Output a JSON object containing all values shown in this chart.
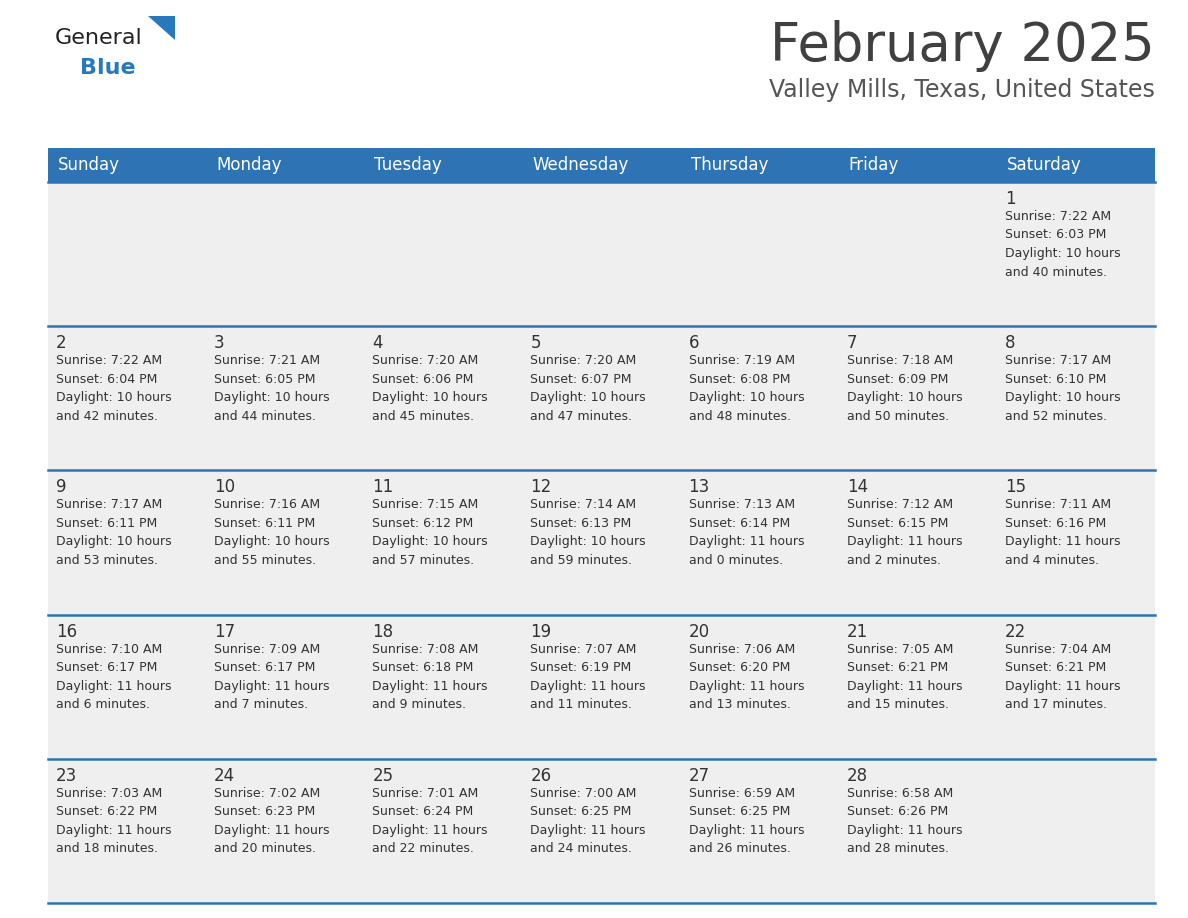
{
  "title": "February 2025",
  "subtitle": "Valley Mills, Texas, United States",
  "days_of_week": [
    "Sunday",
    "Monday",
    "Tuesday",
    "Wednesday",
    "Thursday",
    "Friday",
    "Saturday"
  ],
  "header_bg": "#2E74B5",
  "header_text": "#FFFFFF",
  "cell_bg": "#EFEFEF",
  "cell_text": "#333333",
  "border_color": "#2E74B5",
  "title_color": "#404040",
  "subtitle_color": "#555555",
  "logo_general_color": "#222222",
  "logo_blue_color": "#2878BE",
  "weeks": [
    [
      {
        "day": null,
        "info": null
      },
      {
        "day": null,
        "info": null
      },
      {
        "day": null,
        "info": null
      },
      {
        "day": null,
        "info": null
      },
      {
        "day": null,
        "info": null
      },
      {
        "day": null,
        "info": null
      },
      {
        "day": 1,
        "info": "Sunrise: 7:22 AM\nSunset: 6:03 PM\nDaylight: 10 hours\nand 40 minutes."
      }
    ],
    [
      {
        "day": 2,
        "info": "Sunrise: 7:22 AM\nSunset: 6:04 PM\nDaylight: 10 hours\nand 42 minutes."
      },
      {
        "day": 3,
        "info": "Sunrise: 7:21 AM\nSunset: 6:05 PM\nDaylight: 10 hours\nand 44 minutes."
      },
      {
        "day": 4,
        "info": "Sunrise: 7:20 AM\nSunset: 6:06 PM\nDaylight: 10 hours\nand 45 minutes."
      },
      {
        "day": 5,
        "info": "Sunrise: 7:20 AM\nSunset: 6:07 PM\nDaylight: 10 hours\nand 47 minutes."
      },
      {
        "day": 6,
        "info": "Sunrise: 7:19 AM\nSunset: 6:08 PM\nDaylight: 10 hours\nand 48 minutes."
      },
      {
        "day": 7,
        "info": "Sunrise: 7:18 AM\nSunset: 6:09 PM\nDaylight: 10 hours\nand 50 minutes."
      },
      {
        "day": 8,
        "info": "Sunrise: 7:17 AM\nSunset: 6:10 PM\nDaylight: 10 hours\nand 52 minutes."
      }
    ],
    [
      {
        "day": 9,
        "info": "Sunrise: 7:17 AM\nSunset: 6:11 PM\nDaylight: 10 hours\nand 53 minutes."
      },
      {
        "day": 10,
        "info": "Sunrise: 7:16 AM\nSunset: 6:11 PM\nDaylight: 10 hours\nand 55 minutes."
      },
      {
        "day": 11,
        "info": "Sunrise: 7:15 AM\nSunset: 6:12 PM\nDaylight: 10 hours\nand 57 minutes."
      },
      {
        "day": 12,
        "info": "Sunrise: 7:14 AM\nSunset: 6:13 PM\nDaylight: 10 hours\nand 59 minutes."
      },
      {
        "day": 13,
        "info": "Sunrise: 7:13 AM\nSunset: 6:14 PM\nDaylight: 11 hours\nand 0 minutes."
      },
      {
        "day": 14,
        "info": "Sunrise: 7:12 AM\nSunset: 6:15 PM\nDaylight: 11 hours\nand 2 minutes."
      },
      {
        "day": 15,
        "info": "Sunrise: 7:11 AM\nSunset: 6:16 PM\nDaylight: 11 hours\nand 4 minutes."
      }
    ],
    [
      {
        "day": 16,
        "info": "Sunrise: 7:10 AM\nSunset: 6:17 PM\nDaylight: 11 hours\nand 6 minutes."
      },
      {
        "day": 17,
        "info": "Sunrise: 7:09 AM\nSunset: 6:17 PM\nDaylight: 11 hours\nand 7 minutes."
      },
      {
        "day": 18,
        "info": "Sunrise: 7:08 AM\nSunset: 6:18 PM\nDaylight: 11 hours\nand 9 minutes."
      },
      {
        "day": 19,
        "info": "Sunrise: 7:07 AM\nSunset: 6:19 PM\nDaylight: 11 hours\nand 11 minutes."
      },
      {
        "day": 20,
        "info": "Sunrise: 7:06 AM\nSunset: 6:20 PM\nDaylight: 11 hours\nand 13 minutes."
      },
      {
        "day": 21,
        "info": "Sunrise: 7:05 AM\nSunset: 6:21 PM\nDaylight: 11 hours\nand 15 minutes."
      },
      {
        "day": 22,
        "info": "Sunrise: 7:04 AM\nSunset: 6:21 PM\nDaylight: 11 hours\nand 17 minutes."
      }
    ],
    [
      {
        "day": 23,
        "info": "Sunrise: 7:03 AM\nSunset: 6:22 PM\nDaylight: 11 hours\nand 18 minutes."
      },
      {
        "day": 24,
        "info": "Sunrise: 7:02 AM\nSunset: 6:23 PM\nDaylight: 11 hours\nand 20 minutes."
      },
      {
        "day": 25,
        "info": "Sunrise: 7:01 AM\nSunset: 6:24 PM\nDaylight: 11 hours\nand 22 minutes."
      },
      {
        "day": 26,
        "info": "Sunrise: 7:00 AM\nSunset: 6:25 PM\nDaylight: 11 hours\nand 24 minutes."
      },
      {
        "day": 27,
        "info": "Sunrise: 6:59 AM\nSunset: 6:25 PM\nDaylight: 11 hours\nand 26 minutes."
      },
      {
        "day": 28,
        "info": "Sunrise: 6:58 AM\nSunset: 6:26 PM\nDaylight: 11 hours\nand 28 minutes."
      },
      {
        "day": null,
        "info": null
      }
    ]
  ]
}
